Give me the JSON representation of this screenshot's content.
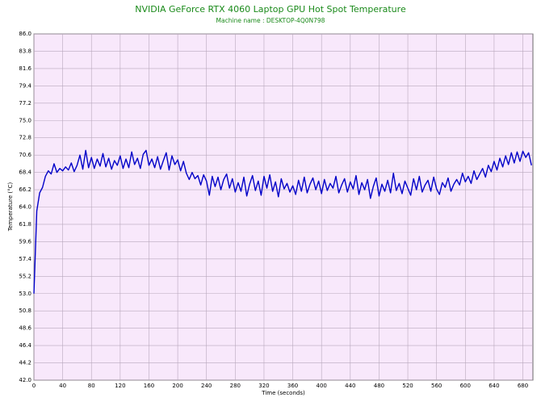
{
  "chart_data": {
    "type": "line",
    "title": "NVIDIA GeForce RTX 4060 Laptop GPU Hot Spot Temperature",
    "subtitle": "Machine name : DESKTOP-4Q0N798",
    "x_label": "Time (seconds)",
    "y_label": "Temperature (°C)",
    "xlim": [
      0,
      694
    ],
    "ylim": [
      42,
      86
    ],
    "xticks": [
      0,
      40,
      80,
      120,
      160,
      200,
      240,
      280,
      320,
      360,
      400,
      440,
      480,
      520,
      560,
      600,
      640,
      680
    ],
    "yticks": [
      {
        "value": 42,
        "label": "42.0"
      },
      {
        "value": 44.2,
        "label": "44.2"
      },
      {
        "value": 46.4,
        "label": "46.4"
      },
      {
        "value": 48.6,
        "label": "48.6"
      },
      {
        "value": 50.8,
        "label": "50.8"
      },
      {
        "value": 53,
        "label": "53.0"
      },
      {
        "value": 55.2,
        "label": "55.2"
      },
      {
        "value": 57.4,
        "label": "57.4"
      },
      {
        "value": 59.6,
        "label": "59.6"
      },
      {
        "value": 61.8,
        "label": "61.8"
      },
      {
        "value": 64,
        "label": "64.0"
      },
      {
        "value": 66.2,
        "label": "66.2"
      },
      {
        "value": 68.4,
        "label": "68.4"
      },
      {
        "value": 70.6,
        "label": "70.6"
      },
      {
        "value": 72.8,
        "label": "72.8"
      },
      {
        "value": 75,
        "label": "75.0"
      },
      {
        "value": 77.2,
        "label": "77.2"
      },
      {
        "value": 79.4,
        "label": "79.4"
      },
      {
        "value": 81.6,
        "label": "81.6"
      },
      {
        "value": 83.8,
        "label": "83.8"
      },
      {
        "value": 86,
        "label": "86.0"
      }
    ],
    "grid": true,
    "x": [
      0,
      4,
      8,
      12,
      16,
      20,
      24,
      28,
      32,
      36,
      40,
      44,
      48,
      52,
      56,
      60,
      64,
      68,
      72,
      76,
      80,
      84,
      88,
      92,
      96,
      100,
      104,
      108,
      112,
      116,
      120,
      124,
      128,
      132,
      136,
      140,
      144,
      148,
      152,
      156,
      160,
      164,
      168,
      172,
      176,
      180,
      184,
      188,
      192,
      196,
      200,
      204,
      208,
      212,
      216,
      220,
      224,
      228,
      232,
      236,
      240,
      244,
      248,
      252,
      256,
      260,
      264,
      268,
      272,
      276,
      280,
      284,
      288,
      292,
      296,
      300,
      304,
      308,
      312,
      316,
      320,
      324,
      328,
      332,
      336,
      340,
      344,
      348,
      352,
      356,
      360,
      364,
      368,
      372,
      376,
      380,
      384,
      388,
      392,
      396,
      400,
      404,
      408,
      412,
      416,
      420,
      424,
      428,
      432,
      436,
      440,
      444,
      448,
      452,
      456,
      460,
      464,
      468,
      472,
      476,
      480,
      484,
      488,
      492,
      496,
      500,
      504,
      508,
      512,
      516,
      520,
      524,
      528,
      532,
      536,
      540,
      544,
      548,
      552,
      556,
      560,
      564,
      568,
      572,
      576,
      580,
      584,
      588,
      592,
      596,
      600,
      604,
      608,
      612,
      616,
      620,
      624,
      628,
      632,
      636,
      640,
      644,
      648,
      652,
      656,
      660,
      664,
      668,
      672,
      676,
      680,
      684,
      688,
      692
    ],
    "series": [
      {
        "name": "GPU Hot Spot Temperature",
        "color": "#0000c8",
        "values": [
          53.0,
          63.5,
          65.8,
          66.5,
          67.9,
          68.6,
          68.2,
          69.5,
          68.4,
          68.9,
          68.6,
          69.1,
          68.7,
          69.6,
          68.5,
          69.3,
          70.6,
          68.8,
          71.2,
          69.0,
          70.3,
          68.9,
          70.1,
          69.2,
          70.8,
          69.1,
          70.2,
          68.8,
          69.9,
          69.3,
          70.5,
          68.9,
          70.1,
          69.0,
          71.0,
          69.4,
          70.2,
          68.9,
          70.7,
          71.2,
          69.3,
          70.1,
          69.0,
          70.4,
          68.8,
          69.9,
          70.9,
          68.7,
          70.5,
          69.4,
          70.0,
          68.6,
          69.8,
          68.3,
          67.5,
          68.4,
          67.6,
          68.0,
          66.8,
          68.1,
          67.3,
          65.5,
          67.9,
          66.6,
          67.8,
          66.2,
          67.5,
          68.2,
          66.4,
          67.6,
          65.9,
          67.1,
          66.0,
          67.8,
          65.4,
          66.9,
          68.0,
          66.1,
          67.3,
          65.5,
          67.9,
          66.4,
          68.1,
          66.0,
          67.2,
          65.3,
          67.6,
          66.3,
          67.0,
          65.9,
          66.7,
          65.6,
          67.4,
          66.0,
          67.8,
          65.8,
          66.9,
          67.7,
          66.2,
          67.3,
          65.7,
          67.5,
          66.1,
          67.0,
          66.4,
          67.9,
          65.8,
          66.8,
          67.6,
          65.9,
          67.2,
          66.3,
          68.0,
          65.6,
          67.1,
          66.2,
          67.5,
          65.1,
          66.6,
          67.7,
          65.4,
          66.9,
          66.0,
          67.4,
          65.8,
          68.3,
          66.1,
          67.0,
          65.7,
          67.3,
          66.4,
          65.5,
          67.6,
          66.2,
          67.9,
          65.9,
          66.8,
          67.4,
          66.0,
          67.8,
          66.3,
          65.6,
          67.1,
          66.5,
          67.7,
          66.0,
          66.9,
          67.5,
          66.8,
          68.3,
          67.2,
          67.9,
          67.0,
          68.6,
          67.5,
          68.2,
          68.9,
          67.8,
          69.3,
          68.5,
          69.8,
          68.7,
          70.2,
          69.1,
          70.5,
          69.4,
          70.9,
          69.6,
          71.0,
          69.8,
          71.1,
          70.3,
          70.9,
          69.3
        ]
      }
    ]
  }
}
